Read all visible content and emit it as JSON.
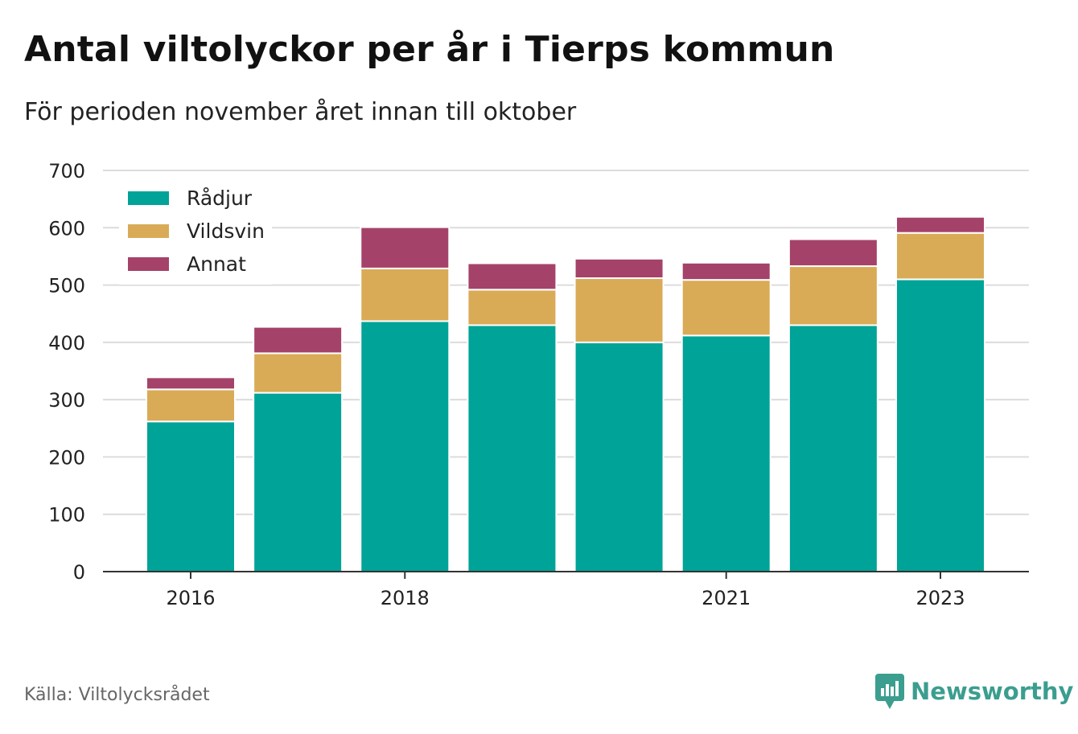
{
  "title": "Antal viltolyckor per år i Tierps kommun",
  "subtitle": "För perioden november året innan till oktober",
  "source": "Källa: Viltolycksrådet",
  "brand": {
    "name": "Newsworthy",
    "icon": "newsworthy-logo-icon",
    "color": "#3b9e8f"
  },
  "chart_data": {
    "type": "bar",
    "stacked": true,
    "categories": [
      "2016",
      "2017",
      "2018",
      "2019",
      "2020",
      "2021",
      "2022",
      "2023"
    ],
    "x_tick_labels": [
      "2016",
      "2018",
      "2021",
      "2023"
    ],
    "series": [
      {
        "name": "Rådjur",
        "color": "#00a398",
        "values": [
          262,
          312,
          437,
          430,
          400,
          412,
          430,
          510
        ]
      },
      {
        "name": "Vildsvin",
        "color": "#d9ab57",
        "values": [
          56,
          69,
          92,
          62,
          112,
          97,
          103,
          81
        ]
      },
      {
        "name": "Annat",
        "color": "#a54269",
        "values": [
          21,
          46,
          72,
          46,
          34,
          30,
          47,
          28
        ]
      }
    ],
    "ylim": [
      0,
      700
    ],
    "yticks": [
      0,
      100,
      200,
      300,
      400,
      500,
      600,
      700
    ],
    "xlabel": "",
    "ylabel": "",
    "grid": true,
    "legend_position": "top-left"
  }
}
